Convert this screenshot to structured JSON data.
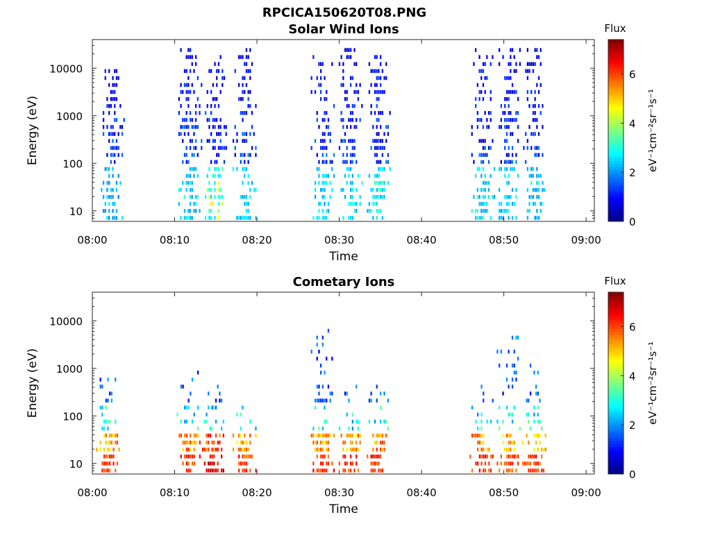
{
  "figure_title": "RPCICA150620T08.PNG",
  "chart_data": [
    {
      "type": "heatmap",
      "title": "Solar Wind Ions",
      "xlabel": "Time",
      "ylabel": "Energy (eV)",
      "xlim": [
        "08:00",
        "09:01"
      ],
      "x_ticks": [
        "08:00",
        "08:10",
        "08:20",
        "08:30",
        "08:40",
        "08:50",
        "09:00"
      ],
      "y_scale": "log",
      "ylim": [
        6,
        40000
      ],
      "y_ticks": [
        "10",
        "100",
        "1000",
        "10000"
      ],
      "colorbar": {
        "label": "Flux",
        "unit": "eV⁻¹cm⁻²sr⁻¹s⁻¹",
        "range": [
          0,
          7.4
        ],
        "ticks": [
          "0",
          "2",
          "4",
          "6"
        ],
        "colormap": "jet"
      },
      "bursts": [
        {
          "time": "08:02.4",
          "e_min": 6,
          "e_max": 12000,
          "peak_flux": 3.0,
          "flux_lowE": 2.6
        },
        {
          "time": "08:11.8",
          "e_min": 6,
          "e_max": 25000,
          "peak_flux": 3.2,
          "flux_lowE": 2.7
        },
        {
          "time": "08:14.8",
          "e_min": 6,
          "e_max": 20000,
          "peak_flux": 4.8,
          "flux_lowE": 3.3
        },
        {
          "time": "08:18.4",
          "e_min": 6,
          "e_max": 30000,
          "peak_flux": 3.2,
          "flux_lowE": 2.8
        },
        {
          "time": "08:27.9",
          "e_min": 6,
          "e_max": 20000,
          "peak_flux": 3.3,
          "flux_lowE": 2.8
        },
        {
          "time": "08:31.3",
          "e_min": 6,
          "e_max": 25000,
          "peak_flux": 3.3,
          "flux_lowE": 2.8
        },
        {
          "time": "08:34.7",
          "e_min": 6,
          "e_max": 20000,
          "peak_flux": 3.6,
          "flux_lowE": 3.0
        },
        {
          "time": "08:47.4",
          "e_min": 6,
          "e_max": 30000,
          "peak_flux": 3.6,
          "flux_lowE": 2.8
        },
        {
          "time": "08:50.5",
          "e_min": 6,
          "e_max": 25000,
          "peak_flux": 3.3,
          "flux_lowE": 2.8
        },
        {
          "time": "08:53.7",
          "e_min": 6,
          "e_max": 30000,
          "peak_flux": 3.3,
          "flux_lowE": 2.6
        }
      ]
    },
    {
      "type": "heatmap",
      "title": "Cometary Ions",
      "xlabel": "Time",
      "ylabel": "Energy (eV)",
      "xlim": [
        "08:00",
        "09:01"
      ],
      "x_ticks": [
        "08:00",
        "08:10",
        "08:20",
        "08:30",
        "08:40",
        "08:50",
        "09:00"
      ],
      "y_scale": "log",
      "ylim": [
        6,
        40000
      ],
      "y_ticks": [
        "10",
        "100",
        "1000",
        "10000"
      ],
      "colorbar": {
        "label": "Flux",
        "unit": "eV⁻¹cm⁻²sr⁻¹s⁻¹",
        "range": [
          0,
          7.4
        ],
        "ticks": [
          "0",
          "2",
          "4",
          "6"
        ],
        "colormap": "jet"
      },
      "bursts": [
        {
          "time": "08:01.8",
          "e_min": 6,
          "e_max": 600,
          "peak_flux": 6.5,
          "flux_lowE": 6.0
        },
        {
          "time": "08:11.6",
          "e_min": 6,
          "e_max": 900,
          "peak_flux": 6.8,
          "flux_lowE": 6.2
        },
        {
          "time": "08:14.7",
          "e_min": 6,
          "e_max": 450,
          "peak_flux": 7.2,
          "flux_lowE": 6.6
        },
        {
          "time": "08:18.4",
          "e_min": 6,
          "e_max": 200,
          "peak_flux": 6.6,
          "flux_lowE": 6.0
        },
        {
          "time": "08:27.9",
          "e_min": 6,
          "e_max": 8500,
          "peak_flux": 6.6,
          "flux_lowE": 6.0
        },
        {
          "time": "08:31.3",
          "e_min": 6,
          "e_max": 450,
          "peak_flux": 6.6,
          "flux_lowE": 6.0
        },
        {
          "time": "08:34.7",
          "e_min": 6,
          "e_max": 550,
          "peak_flux": 6.8,
          "flux_lowE": 6.2
        },
        {
          "time": "08:47.2",
          "e_min": 6,
          "e_max": 450,
          "peak_flux": 6.8,
          "flux_lowE": 6.2
        },
        {
          "time": "08:50.5",
          "e_min": 6,
          "e_max": 5500,
          "peak_flux": 6.6,
          "flux_lowE": 6.0
        },
        {
          "time": "08:53.6",
          "e_min": 6,
          "e_max": 1200,
          "peak_flux": 6.6,
          "flux_lowE": 5.8
        }
      ]
    }
  ]
}
